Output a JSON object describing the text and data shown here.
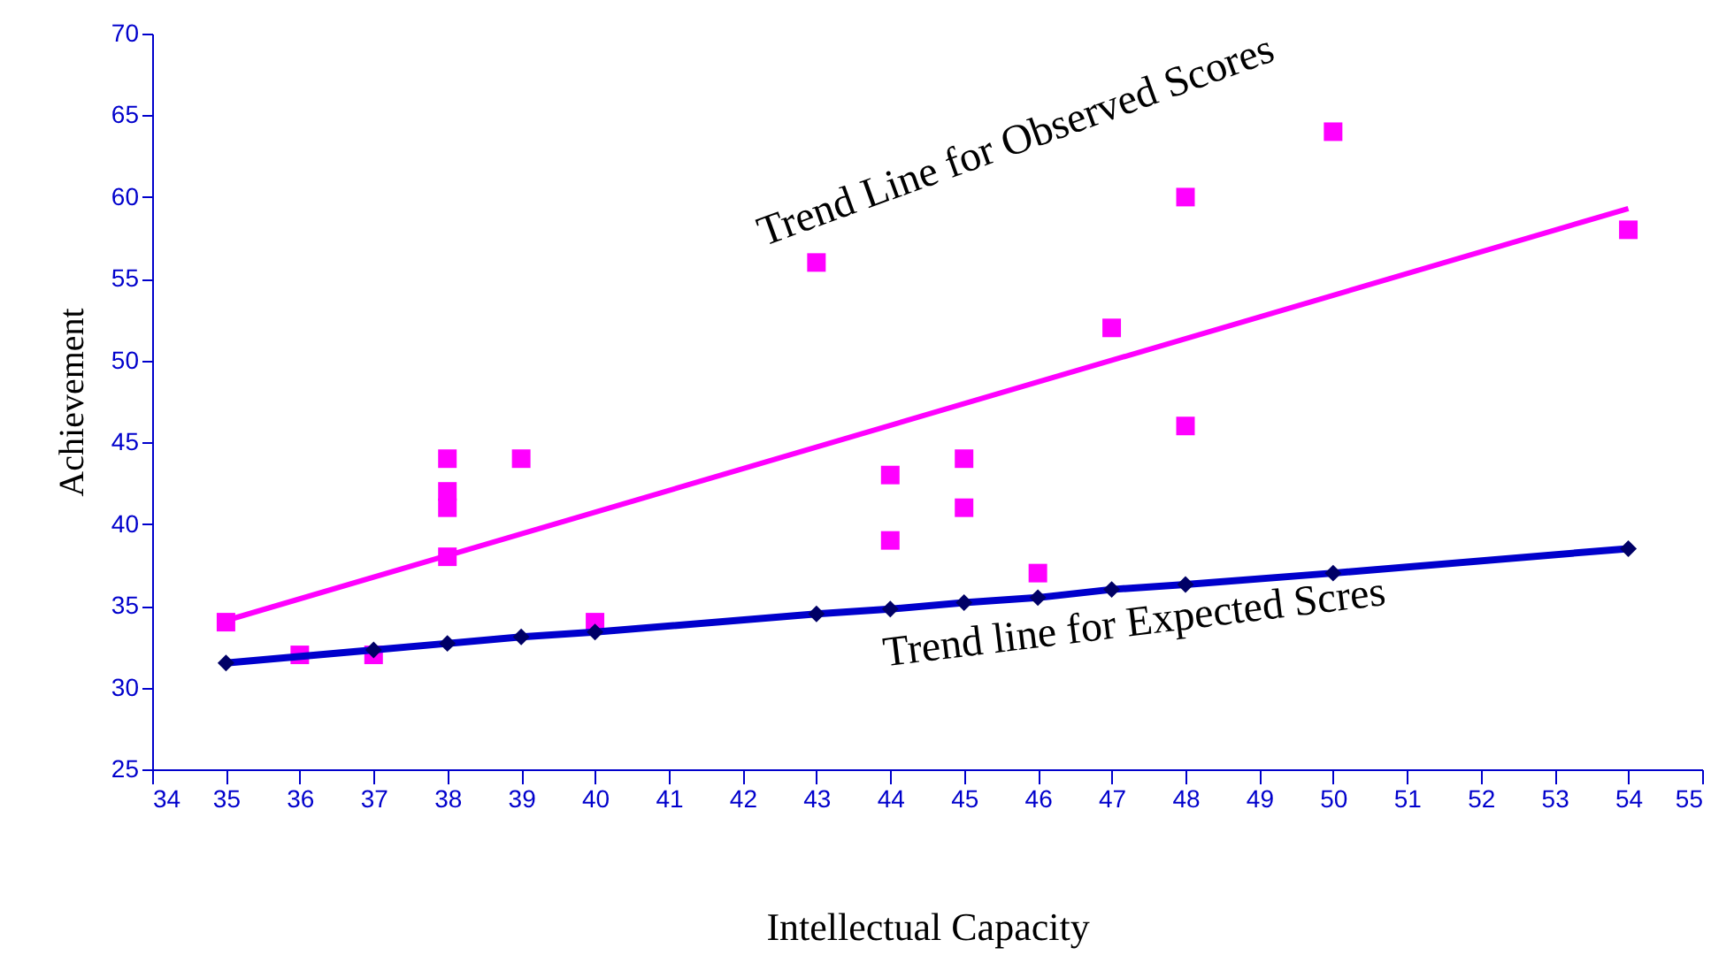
{
  "chart_data": {
    "type": "scatter",
    "xlabel": "Intellectual Capacity",
    "ylabel": "Achievement",
    "xlim": [
      34,
      55
    ],
    "xticks": [
      34,
      35,
      36,
      37,
      38,
      39,
      40,
      41,
      42,
      43,
      44,
      45,
      46,
      47,
      48,
      49,
      50,
      51,
      52,
      53,
      54,
      55
    ],
    "ylim": [
      25,
      70
    ],
    "yticks": [
      25,
      30,
      35,
      40,
      45,
      50,
      55,
      60,
      65,
      70
    ],
    "grid": false,
    "series": [
      {
        "color": "#ff00ff",
        "marker": "square",
        "x": [
          35,
          36,
          37,
          38,
          38,
          38,
          38,
          39,
          40,
          43,
          44,
          44,
          45,
          45,
          46,
          47,
          48,
          48,
          50,
          54
        ],
        "values": [
          34,
          32,
          32,
          44,
          42,
          41,
          38,
          44,
          34,
          56,
          43,
          39,
          44,
          41,
          37,
          52,
          60,
          46,
          64,
          58
        ]
      },
      {
        "type": "line",
        "name": "Trend Line for Observed Scores",
        "color": "#ff00ff",
        "marker": "none",
        "x": [
          35,
          54
        ],
        "values": [
          34.1,
          59.3
        ]
      },
      {
        "type": "line",
        "name": "Trend line for Expected Scres",
        "color": "#0000cc",
        "marker": "diamond",
        "x": [
          35,
          37,
          38,
          39,
          40,
          43,
          44,
          45,
          46,
          47,
          48,
          50,
          54
        ],
        "values": [
          31.5,
          32.3,
          32.7,
          33.1,
          33.4,
          34.5,
          34.8,
          35.2,
          35.5,
          36.0,
          36.3,
          37.0,
          38.5
        ]
      }
    ]
  }
}
